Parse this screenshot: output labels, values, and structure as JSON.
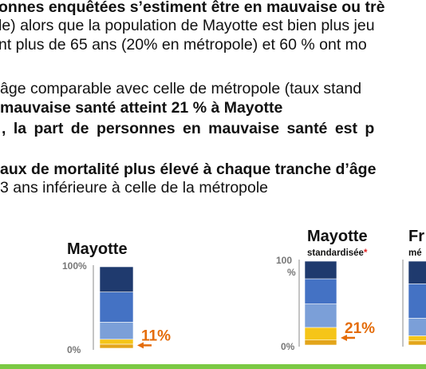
{
  "text": {
    "line1": "onnes enquêtées s’estiment être en mauvaise ou trè",
    "line2": "le) alors que la population de Mayotte est bien plus jeu",
    "line3": "nt plus de 65 ans (20% en métropole) et 60 % ont mo",
    "line4": "âge comparable avec  celle de métropole (taux stand",
    "line5": "mauvaise santé atteint 21 % à Mayotte",
    "line6": ", la part de personnes en mauvaise santé est p",
    "line7": "aux de mortalité plus élevé à chaque tranche d’âge",
    "line8": "3 ans inférieure à celle de la métropole"
  },
  "chart_data": [
    {
      "type": "bar",
      "title": "Mayotte",
      "subtitle": "",
      "yticks": [
        "100%",
        "0%"
      ],
      "segments": [
        0.05,
        0.06,
        0.21,
        0.37,
        0.31
      ],
      "segment_colors": [
        "#e3a51b",
        "#f5c518",
        "#7b9fd8",
        "#4472c4",
        "#1f3a6e"
      ],
      "annotation": "11%",
      "annotation_color": "#e46c0a"
    },
    {
      "type": "bar",
      "title": "Mayotte",
      "subtitle": "standardisée",
      "subtitle_marker": "*",
      "yticks": [
        "100\n%",
        "0%"
      ],
      "segments": [
        0.06,
        0.15,
        0.28,
        0.3,
        0.21
      ],
      "segment_colors": [
        "#e3a51b",
        "#f5c518",
        "#7b9fd8",
        "#4472c4",
        "#1f3a6e"
      ],
      "annotation": "21%",
      "annotation_color": "#e46c0a"
    },
    {
      "type": "bar",
      "title": "Fr",
      "subtitle": "mé",
      "yticks": [],
      "segments": [
        0.05,
        0.06,
        0.21,
        0.41,
        0.27
      ],
      "segment_colors": [
        "#e3a51b",
        "#f5c518",
        "#7b9fd8",
        "#4472c4",
        "#1f3a6e"
      ],
      "annotation": "",
      "annotation_color": "#e46c0a"
    }
  ]
}
